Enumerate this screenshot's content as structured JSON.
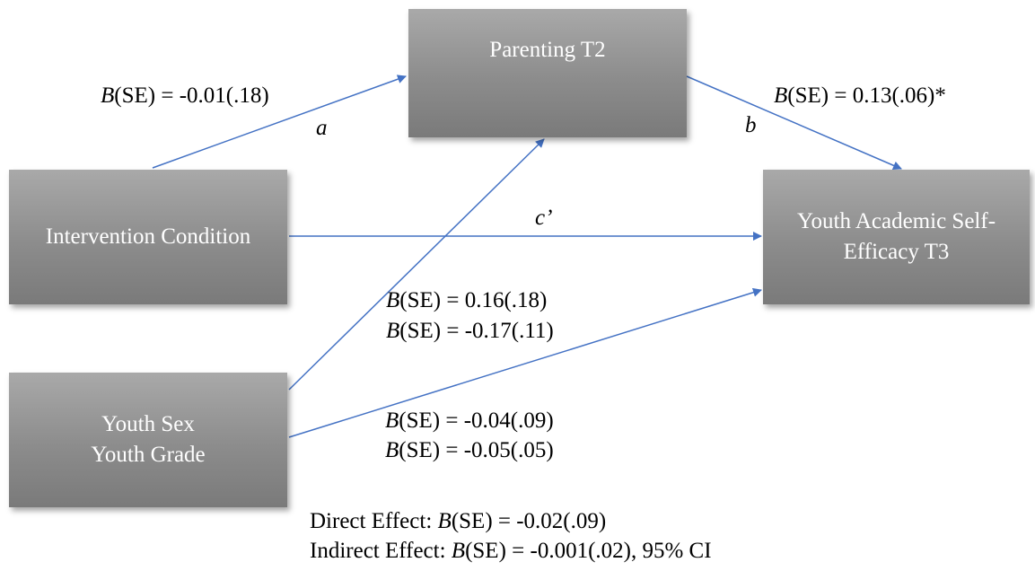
{
  "colors": {
    "box": "#8c8c8c",
    "box_text": "#ffffff",
    "arrow": "#4472c4"
  },
  "nodes": {
    "parenting": {
      "lines": [
        "Parenting T2"
      ]
    },
    "intervention": {
      "lines": [
        "Intervention Condition"
      ]
    },
    "outcome": {
      "lines": [
        "Youth Academic Self-",
        "Efficacy T3"
      ]
    },
    "covariates": {
      "lines": [
        "Youth Sex",
        "Youth Grade"
      ]
    }
  },
  "paths": {
    "a": {
      "letter": "a",
      "coef_B": "B",
      "coef_rest": "(SE) = -0.01(.18)"
    },
    "b": {
      "letter": "b",
      "coef_B": "B",
      "coef_rest": "(SE) = 0.13(.06)*"
    },
    "c": {
      "letter": "c’"
    },
    "cov_to_parenting": [
      {
        "B": "B",
        "rest": "(SE) = 0.16(.18)"
      },
      {
        "B": "B",
        "rest": "(SE) = -0.17(.11)"
      }
    ],
    "cov_to_outcome": [
      {
        "B": "B",
        "rest": "(SE) = -0.04(.09)"
      },
      {
        "B": "B",
        "rest": "(SE) = -0.05(.05)"
      }
    ]
  },
  "effects": {
    "direct": {
      "prefix": "Direct Effect: ",
      "B": "B",
      "rest": "(SE) = -0.02(.09)"
    },
    "indirect": {
      "prefix": "Indirect Effect: ",
      "B": "B",
      "rest": "(SE) = -0.001(.02), 95% CI"
    }
  }
}
